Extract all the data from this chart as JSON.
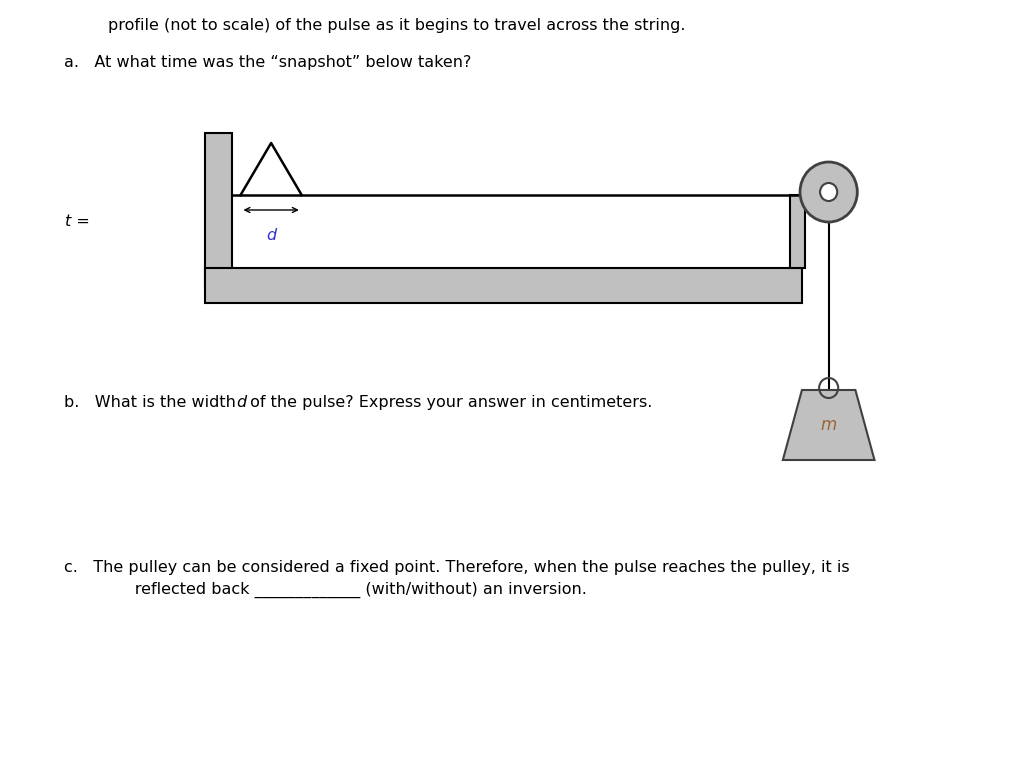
{
  "bg_color": "#ffffff",
  "text_color": "#000000",
  "gray_color": "#c0c0c0",
  "dark_gray": "#404040",
  "line_color": "#000000",
  "top_text": "profile (not to scale) of the pulse as it begins to travel across the string.",
  "q_a": "a.   At what time was the “snapshot” below taken?",
  "q_b_pre": "b.   What is the width ",
  "q_b_d": "d",
  "q_b_post": " of the pulse? Express your answer in centimeters.",
  "q_c1": "c.   The pulley can be considered a fixed point. Therefore, when the pulse reaches the pulley, it is",
  "q_c2": "      reflected back _____________ (with/without) an inversion.",
  "t_equals": "t =",
  "d_label": "d",
  "m_label": "m",
  "fig_width": 10.21,
  "fig_height": 7.82,
  "dpi": 100
}
